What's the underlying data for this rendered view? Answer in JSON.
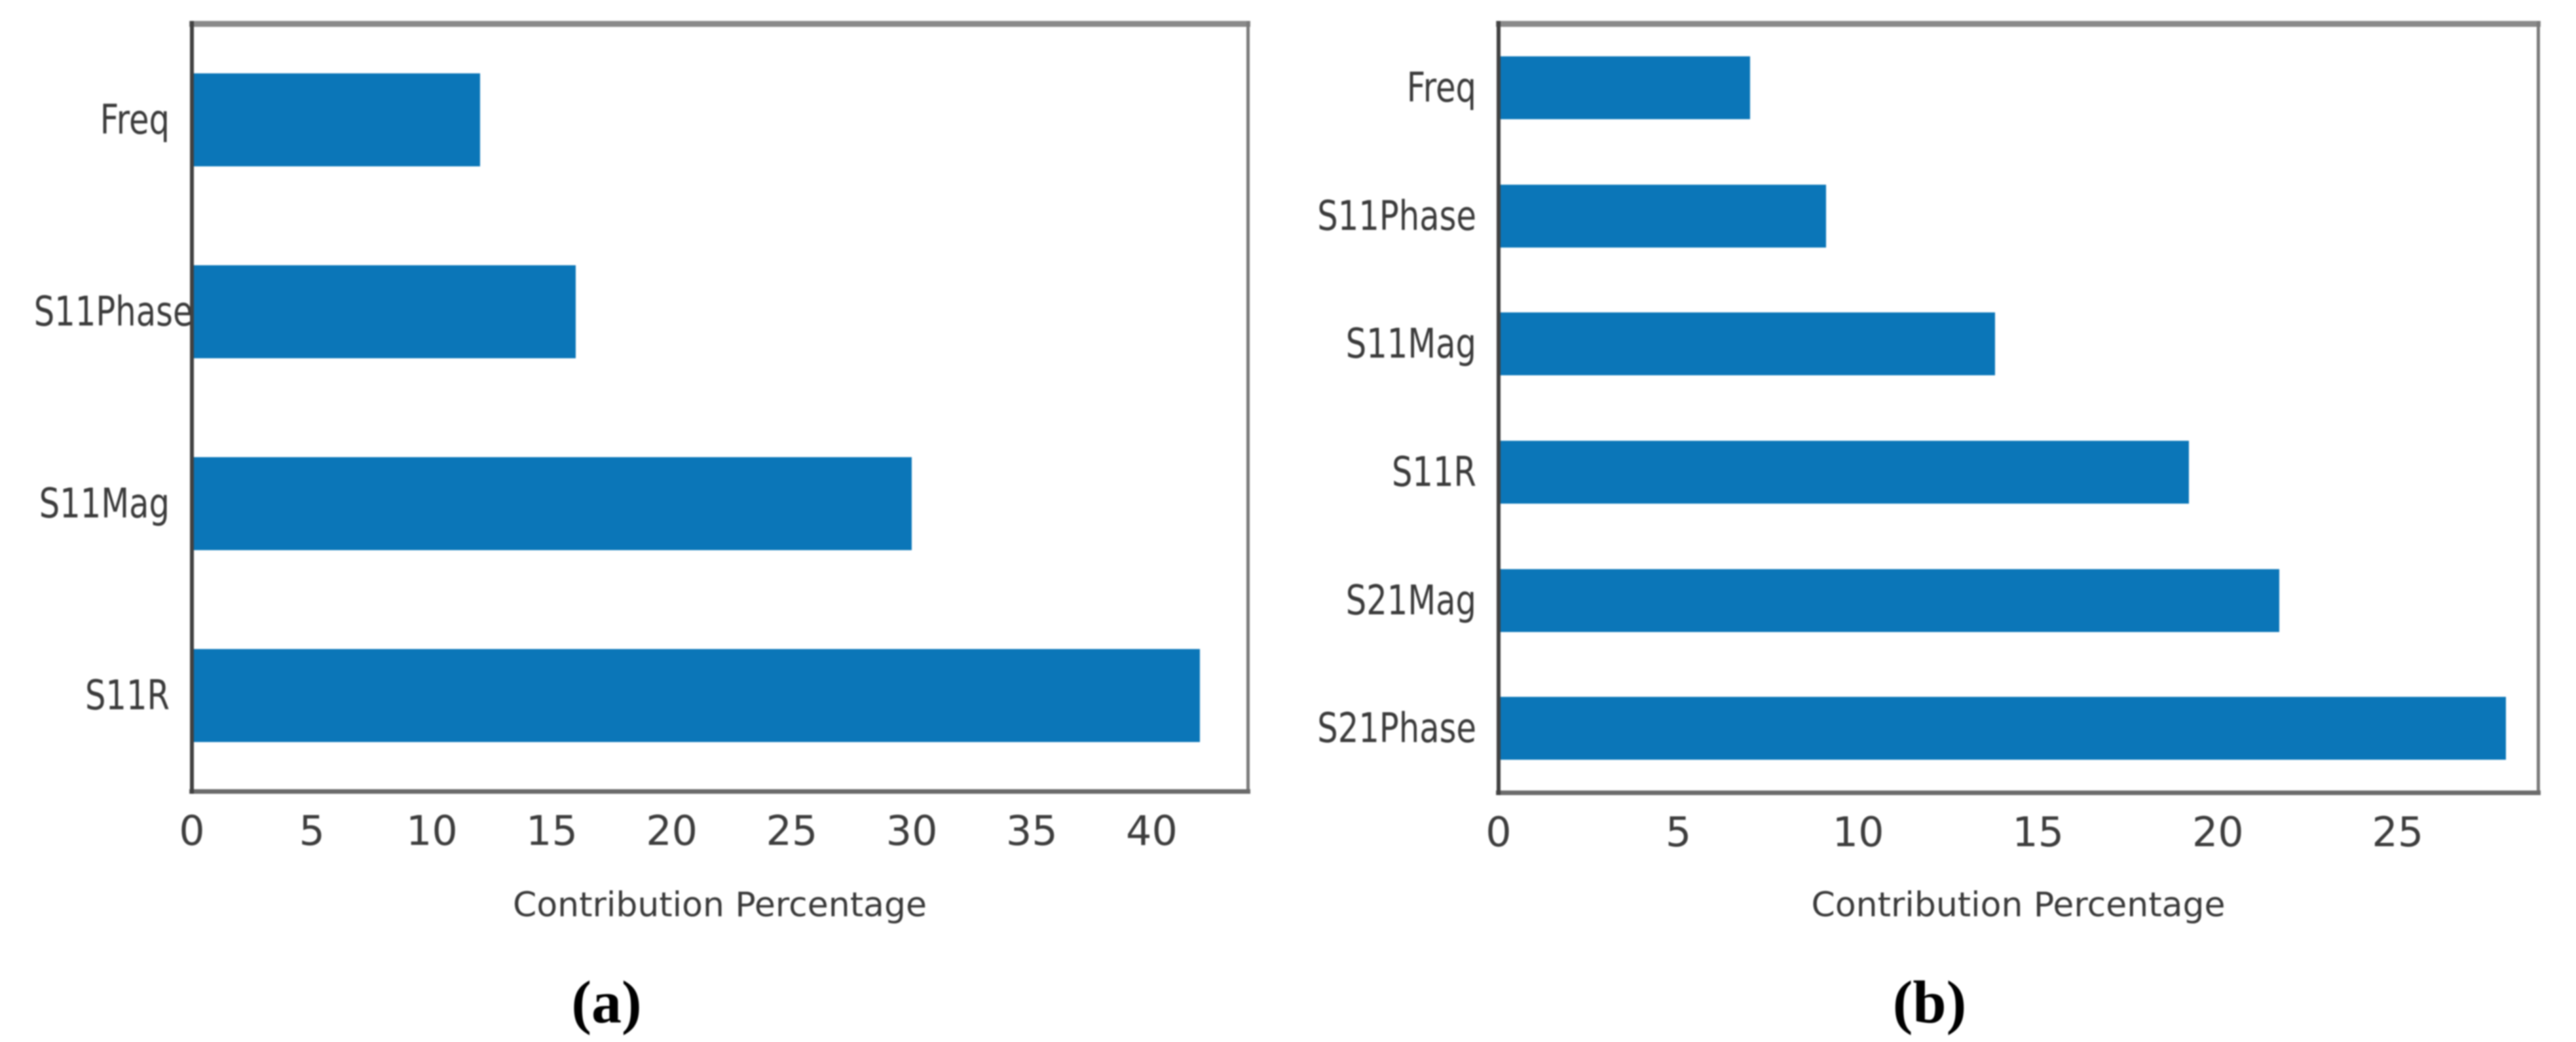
{
  "figure": {
    "bar_color": "#0b76b8",
    "text_color": "#3b3b3b",
    "spine_colors": {
      "left": "#414141",
      "bottom": "#6b6b6b",
      "top": "#8a8a8a",
      "right": "#7b7b7b"
    },
    "background": "#ffffff"
  },
  "chart_data": [
    {
      "type": "bar",
      "orientation": "horizontal",
      "title": "",
      "categories_top_to_bottom": [
        "Freq",
        "S11Phase",
        "S11Mag",
        "S11R"
      ],
      "values": [
        12,
        16,
        30,
        42
      ],
      "xlabel": "Contribution Percentage",
      "ylabel": "",
      "xticks": [
        0,
        5,
        10,
        15,
        20,
        25,
        30,
        35,
        40
      ],
      "xlim": [
        0,
        44
      ],
      "grid": false,
      "legend": "none",
      "caption": "(a)"
    },
    {
      "type": "bar",
      "orientation": "horizontal",
      "title": "",
      "categories_top_to_bottom": [
        "Freq",
        "S11Phase",
        "S11Mag",
        "S11R",
        "S21Mag",
        "S21Phase"
      ],
      "values": [
        7,
        9.1,
        13.8,
        19.2,
        21.7,
        28
      ],
      "xlabel": "Contribution Percentage",
      "ylabel": "",
      "xticks": [
        0,
        5,
        10,
        15,
        20,
        25
      ],
      "xlim": [
        0,
        28.9
      ],
      "grid": false,
      "legend": "none",
      "caption": "(b)"
    }
  ]
}
